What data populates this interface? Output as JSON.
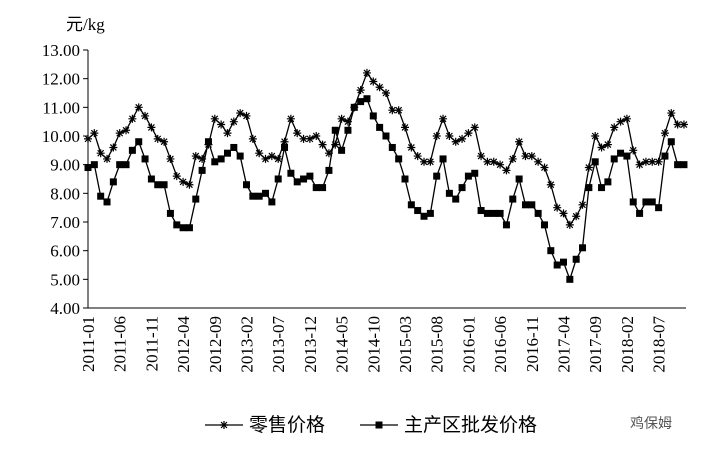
{
  "chart_data": {
    "type": "line",
    "y_label": "元/kg",
    "watermark": "鸡保姆",
    "categories": [
      "2011-01",
      null,
      null,
      null,
      null,
      "2011-06",
      null,
      null,
      null,
      null,
      "2011-11",
      null,
      null,
      null,
      null,
      "2012-04",
      null,
      null,
      null,
      null,
      "2012-09",
      null,
      null,
      null,
      null,
      "2013-02",
      null,
      null,
      null,
      null,
      "2013-07",
      null,
      null,
      null,
      null,
      "2013-12",
      null,
      null,
      null,
      null,
      "2014-05",
      null,
      null,
      null,
      null,
      "2014-10",
      null,
      null,
      null,
      null,
      "2015-03",
      null,
      null,
      null,
      null,
      "2015-08",
      null,
      null,
      null,
      null,
      "2016-01",
      null,
      null,
      null,
      null,
      "2016-06",
      null,
      null,
      null,
      null,
      "2016-11",
      null,
      null,
      null,
      null,
      "2017-04",
      null,
      null,
      null,
      null,
      "2017-09",
      null,
      null,
      null,
      null,
      "2018-02",
      null,
      null,
      null,
      null,
      "2018-07",
      null,
      null,
      null,
      null
    ],
    "series": [
      {
        "name": "零售价格",
        "color": "#000000",
        "marker": "star",
        "values": [
          9.9,
          10.1,
          9.4,
          9.2,
          9.6,
          10.1,
          10.2,
          10.6,
          11.0,
          10.7,
          10.3,
          9.9,
          9.8,
          9.2,
          8.6,
          8.4,
          8.3,
          9.3,
          9.2,
          9.7,
          10.6,
          10.4,
          10.1,
          10.5,
          10.8,
          10.7,
          9.9,
          9.4,
          9.2,
          9.3,
          9.2,
          9.8,
          10.6,
          10.1,
          9.9,
          9.9,
          10.0,
          9.7,
          9.4,
          9.7,
          10.6,
          10.5,
          11.0,
          11.6,
          12.2,
          11.9,
          11.7,
          11.5,
          10.9,
          10.9,
          10.3,
          9.6,
          9.3,
          9.1,
          9.1,
          10.0,
          10.6,
          10.0,
          9.8,
          9.9,
          10.1,
          10.3,
          9.3,
          9.1,
          9.1,
          9.0,
          8.8,
          9.2,
          9.8,
          9.3,
          9.3,
          9.1,
          8.9,
          8.3,
          7.5,
          7.3,
          6.9,
          7.2,
          7.6,
          8.9,
          10.0,
          9.6,
          9.7,
          10.3,
          10.5,
          10.6,
          9.5,
          9.0,
          9.1,
          9.1,
          9.1,
          10.1,
          10.8,
          10.4,
          10.4
        ]
      },
      {
        "name": "主产区批发价格",
        "color": "#000000",
        "marker": "square",
        "values": [
          8.9,
          9.0,
          7.9,
          7.7,
          8.4,
          9.0,
          9.0,
          9.5,
          9.8,
          9.2,
          8.5,
          8.3,
          8.3,
          7.3,
          6.9,
          6.8,
          6.8,
          7.8,
          8.8,
          9.8,
          9.1,
          9.2,
          9.4,
          9.6,
          9.3,
          8.3,
          7.9,
          7.9,
          8.0,
          7.7,
          8.5,
          9.6,
          8.7,
          8.4,
          8.5,
          8.6,
          8.2,
          8.2,
          8.8,
          10.2,
          9.5,
          10.2,
          11.0,
          11.2,
          11.3,
          10.7,
          10.3,
          10.0,
          9.6,
          9.2,
          8.5,
          7.6,
          7.4,
          7.2,
          7.3,
          8.6,
          9.2,
          8.0,
          7.8,
          8.2,
          8.6,
          8.7,
          7.4,
          7.3,
          7.3,
          7.3,
          6.9,
          7.8,
          8.5,
          7.6,
          7.6,
          7.3,
          6.9,
          6.0,
          5.5,
          5.6,
          5.0,
          5.7,
          6.1,
          8.2,
          9.1,
          8.2,
          8.4,
          9.2,
          9.4,
          9.3,
          7.7,
          7.3,
          7.7,
          7.7,
          7.5,
          9.3,
          9.8,
          9.0,
          9.0
        ]
      }
    ],
    "ylim": [
      4,
      13
    ],
    "yticks": [
      {
        "value": 4,
        "label": "4.00"
      },
      {
        "value": 5,
        "label": "5.00"
      },
      {
        "value": 6,
        "label": "6.00"
      },
      {
        "value": 7,
        "label": "7.00"
      },
      {
        "value": 8,
        "label": "8.00"
      },
      {
        "value": 9,
        "label": "9.00"
      },
      {
        "value": 10,
        "label": "10.00"
      },
      {
        "value": 11,
        "label": "11.00"
      },
      {
        "value": 12,
        "label": "12.00"
      },
      {
        "value": 13,
        "label": "13.00"
      }
    ],
    "grid": false,
    "legend": "bottom"
  }
}
